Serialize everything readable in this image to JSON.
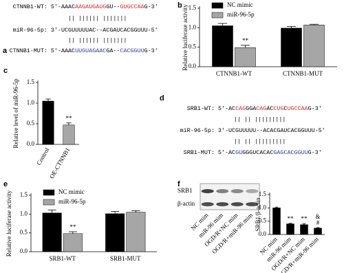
{
  "sequences": [
    {
      "label": "a",
      "lines": [
        [
          {
            "text": "CTNNB1-WT: 5'-AAAC",
            "color": "#000000"
          },
          {
            "text": "AAGAUGAUG",
            "color": "#d62728"
          },
          {
            "text": "GU--",
            "color": "#000000"
          },
          {
            "text": "GUGCCAA",
            "color": "#d62728"
          },
          {
            "text": "G-3'",
            "color": "#000000"
          }
        ],
        [
          {
            "text": "||  ||||||    |||||||",
            "color": "#000000"
          }
        ],
        [
          {
            "text": "miR-96-5p: 3'-UCGUUUUUAC--ACGAUCACGGUUU-5'",
            "color": "#000000"
          }
        ],
        [
          {
            "text": "||  ||||||    |||||||",
            "color": "#000000"
          }
        ],
        [
          {
            "text": "CTNNB1-MUT: 5'-AAAC",
            "color": "#000000"
          },
          {
            "text": "UUGUAGAAC",
            "color": "#2c3e9e"
          },
          {
            "text": "GA--",
            "color": "#000000"
          },
          {
            "text": "CACGGUU",
            "color": "#2c3e9e"
          },
          {
            "text": "G-3'",
            "color": "#000000"
          }
        ]
      ]
    },
    {
      "label": "d",
      "lines": [
        [
          {
            "text": "SRB1-WT: 5'-AC",
            "color": "#000000"
          },
          {
            "text": "CAG",
            "color": "#d62728"
          },
          {
            "text": "GGA",
            "color": "#000000"
          },
          {
            "text": "CAG",
            "color": "#d62728"
          },
          {
            "text": "AC",
            "color": "#000000"
          },
          {
            "text": "CUG",
            "color": "#d62728"
          },
          {
            "text": "C",
            "color": "#000000"
          },
          {
            "text": "UGCCAA",
            "color": "#d62728"
          },
          {
            "text": "G-3'",
            "color": "#000000"
          }
        ],
        [
          {
            "text": "||   ||  |||||||||",
            "color": "#000000"
          }
        ],
        [
          {
            "text": "miR-96-5p: 3'-UCGUUUUU--ACACGAUCACGGUUU-5'",
            "color": "#000000"
          }
        ],
        [
          {
            "text": "||   ||  |||||||||",
            "color": "#000000"
          }
        ],
        [
          {
            "text": "SRB1-MUT: 5'-AC",
            "color": "#000000"
          },
          {
            "text": "GU",
            "color": "#2c3e9e"
          },
          {
            "text": "GGGUCACAC",
            "color": "#000000"
          },
          {
            "text": "GAG",
            "color": "#2c3e9e"
          },
          {
            "text": "CACGGUU",
            "color": "#2c3e9e"
          },
          {
            "text": "G-3'",
            "color": "#000000"
          }
        ]
      ]
    }
  ],
  "blot": {
    "rows": [
      "SRB1",
      "β-actin"
    ],
    "lanes": [
      "NC mim",
      "miR-96 mim",
      "OGD/R+NC mim",
      "OGD/R+miR-96 mim"
    ]
  },
  "chart_data": [
    {
      "type": "bar",
      "label": "b",
      "y_label": "Relative luciferase activity",
      "categories": [
        "CTNNB1-WT",
        "CTNNB1-MUT"
      ],
      "series": [
        {
          "name": "NC mimic",
          "color": "#000000",
          "values": [
            1.05,
            0.99
          ],
          "errors": [
            0.06,
            0.04
          ],
          "annotations": [
            null,
            null
          ]
        },
        {
          "name": "miR-96-5p",
          "color": "#a6a6a6",
          "values": [
            0.49,
            1.07
          ],
          "errors": [
            0.06,
            0.02
          ],
          "annotations": [
            "**",
            null
          ]
        }
      ],
      "ylim": [
        0,
        1.5
      ],
      "yticks": [
        {
          "value": 0,
          "label": "0.0"
        },
        0.5,
        {
          "value": 1,
          "label": "1.0"
        },
        1.5
      ],
      "legend": "top-left"
    },
    {
      "type": "bar",
      "label": "c",
      "y_label": "Relative level of miR-96-5p",
      "categories": [
        "Control",
        "OE-CTNNB1"
      ],
      "values": [
        1.05,
        0.47
      ],
      "errors": [
        0.05,
        0.05
      ],
      "colors": [
        "#000000",
        "#a6a6a6"
      ],
      "annotations": [
        null,
        "**"
      ],
      "ylim": [
        0,
        1.5
      ],
      "yticks": [
        {
          "value": 0,
          "label": "0.0"
        },
        0.5,
        {
          "value": 1,
          "label": "1.0"
        },
        1.5
      ]
    },
    {
      "type": "bar",
      "label": "e",
      "y_label": "Relative luciferase activity",
      "categories": [
        "SRB1-WT",
        "SRB1-MUT"
      ],
      "series": [
        {
          "name": "NC mimic",
          "color": "#000000",
          "values": [
            1.03,
            1.01
          ],
          "errors": [
            0.08,
            0.06
          ],
          "annotations": [
            null,
            null
          ]
        },
        {
          "name": "miR-96-5p",
          "color": "#a6a6a6",
          "values": [
            0.48,
            1.05
          ],
          "errors": [
            0.05,
            0.04
          ],
          "annotations": [
            "**",
            null
          ]
        }
      ],
      "ylim": [
        0,
        1.5
      ],
      "yticks": [
        {
          "value": 0,
          "label": "0.0"
        },
        0.5,
        {
          "value": 1,
          "label": "1.0"
        },
        1.5
      ],
      "legend": "top-left"
    },
    {
      "type": "bar",
      "label": "f",
      "y_label": "SRB1/β-actin",
      "categories": [
        "NC mim",
        "miR-96 mim",
        "OGD/R+NC mim",
        "OGD/R+miR-96 mim"
      ],
      "values": [
        1.0,
        0.4,
        0.37,
        0.24
      ],
      "errors": [
        0.03,
        0.02,
        0.04,
        0.02
      ],
      "color": "#000000",
      "annotations": [
        null,
        "**",
        "**",
        [
          "#",
          "&"
        ]
      ],
      "ylim": [
        0,
        1.5
      ],
      "yticks": [
        {
          "value": 0,
          "label": "0.0"
        },
        0.5,
        {
          "value": 1,
          "label": "1.0"
        },
        1.5
      ]
    }
  ]
}
